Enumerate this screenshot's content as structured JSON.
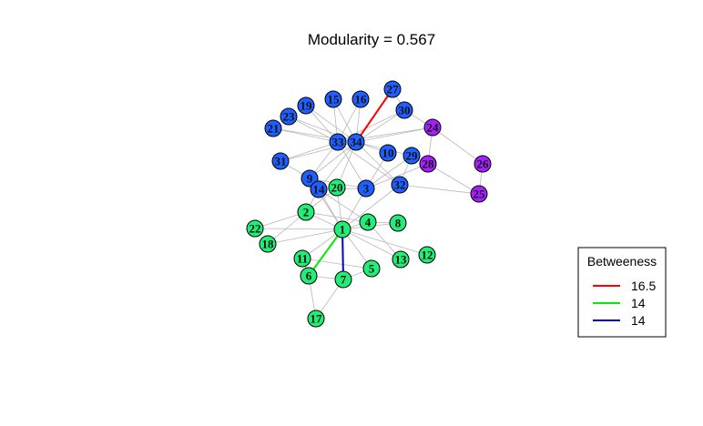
{
  "title": "Modularity =  0.567",
  "colors": {
    "community_a": "#1f5fff",
    "community_b": "#22ee77",
    "community_c": "#a61fff",
    "edge": "#b8b8b8"
  },
  "nodes": [
    {
      "id": "1",
      "group": "community_b"
    },
    {
      "id": "2",
      "group": "community_b"
    },
    {
      "id": "4",
      "group": "community_b"
    },
    {
      "id": "5",
      "group": "community_b"
    },
    {
      "id": "6",
      "group": "community_b"
    },
    {
      "id": "7",
      "group": "community_b"
    },
    {
      "id": "8",
      "group": "community_b"
    },
    {
      "id": "11",
      "group": "community_b"
    },
    {
      "id": "12",
      "group": "community_b"
    },
    {
      "id": "13",
      "group": "community_b"
    },
    {
      "id": "17",
      "group": "community_b"
    },
    {
      "id": "18",
      "group": "community_b"
    },
    {
      "id": "20",
      "group": "community_b"
    },
    {
      "id": "22",
      "group": "community_b"
    },
    {
      "id": "3",
      "group": "community_a"
    },
    {
      "id": "9",
      "group": "community_a"
    },
    {
      "id": "10",
      "group": "community_a"
    },
    {
      "id": "14",
      "group": "community_a"
    },
    {
      "id": "15",
      "group": "community_a"
    },
    {
      "id": "16",
      "group": "community_a"
    },
    {
      "id": "19",
      "group": "community_a"
    },
    {
      "id": "21",
      "group": "community_a"
    },
    {
      "id": "23",
      "group": "community_a"
    },
    {
      "id": "27",
      "group": "community_a"
    },
    {
      "id": "29",
      "group": "community_a"
    },
    {
      "id": "30",
      "group": "community_a"
    },
    {
      "id": "31",
      "group": "community_a"
    },
    {
      "id": "32",
      "group": "community_a"
    },
    {
      "id": "33",
      "group": "community_a"
    },
    {
      "id": "34",
      "group": "community_a"
    },
    {
      "id": "24",
      "group": "community_c"
    },
    {
      "id": "25",
      "group": "community_c"
    },
    {
      "id": "26",
      "group": "community_c"
    },
    {
      "id": "28",
      "group": "community_c"
    }
  ],
  "edges": [
    [
      "1",
      "2"
    ],
    [
      "1",
      "4"
    ],
    [
      "1",
      "5"
    ],
    [
      "1",
      "6"
    ],
    [
      "1",
      "7"
    ],
    [
      "1",
      "8"
    ],
    [
      "1",
      "11"
    ],
    [
      "1",
      "12"
    ],
    [
      "1",
      "13"
    ],
    [
      "1",
      "18"
    ],
    [
      "1",
      "20"
    ],
    [
      "1",
      "22"
    ],
    [
      "1",
      "3"
    ],
    [
      "1",
      "32"
    ],
    [
      "1",
      "14"
    ],
    [
      "1",
      "9"
    ],
    [
      "2",
      "4"
    ],
    [
      "2",
      "18"
    ],
    [
      "2",
      "20"
    ],
    [
      "2",
      "22"
    ],
    [
      "2",
      "14"
    ],
    [
      "4",
      "8"
    ],
    [
      "4",
      "13"
    ],
    [
      "4",
      "14"
    ],
    [
      "5",
      "7"
    ],
    [
      "5",
      "11"
    ],
    [
      "6",
      "7"
    ],
    [
      "6",
      "11"
    ],
    [
      "6",
      "17"
    ],
    [
      "7",
      "17"
    ],
    [
      "3",
      "9"
    ],
    [
      "3",
      "10"
    ],
    [
      "3",
      "14"
    ],
    [
      "3",
      "28"
    ],
    [
      "3",
      "29"
    ],
    [
      "3",
      "33"
    ],
    [
      "9",
      "31"
    ],
    [
      "9",
      "33"
    ],
    [
      "9",
      "34"
    ],
    [
      "10",
      "34"
    ],
    [
      "14",
      "34"
    ],
    [
      "20",
      "34"
    ],
    [
      "15",
      "33"
    ],
    [
      "15",
      "34"
    ],
    [
      "16",
      "33"
    ],
    [
      "16",
      "34"
    ],
    [
      "19",
      "33"
    ],
    [
      "19",
      "34"
    ],
    [
      "21",
      "33"
    ],
    [
      "21",
      "34"
    ],
    [
      "23",
      "33"
    ],
    [
      "23",
      "34"
    ],
    [
      "24",
      "26"
    ],
    [
      "24",
      "28"
    ],
    [
      "24",
      "30"
    ],
    [
      "24",
      "33"
    ],
    [
      "24",
      "34"
    ],
    [
      "25",
      "26"
    ],
    [
      "25",
      "28"
    ],
    [
      "25",
      "32"
    ],
    [
      "27",
      "30"
    ],
    [
      "27",
      "34"
    ],
    [
      "29",
      "32"
    ],
    [
      "29",
      "34"
    ],
    [
      "30",
      "33"
    ],
    [
      "30",
      "34"
    ],
    [
      "31",
      "33"
    ],
    [
      "31",
      "34"
    ],
    [
      "32",
      "33"
    ],
    [
      "32",
      "34"
    ],
    [
      "33",
      "34"
    ]
  ],
  "highlighted_edges": [
    {
      "from": "27",
      "to": "34",
      "color": "#ff0000"
    },
    {
      "from": "1",
      "to": "6",
      "color": "#00ee00"
    },
    {
      "from": "1",
      "to": "7",
      "color": "#0000cc"
    }
  ],
  "legend": {
    "title": "Betweeness",
    "items": [
      {
        "label": "16.5",
        "color": "#ff0000"
      },
      {
        "label": "14",
        "color": "#00ee00"
      },
      {
        "label": "14",
        "color": "#0000cc"
      }
    ]
  }
}
